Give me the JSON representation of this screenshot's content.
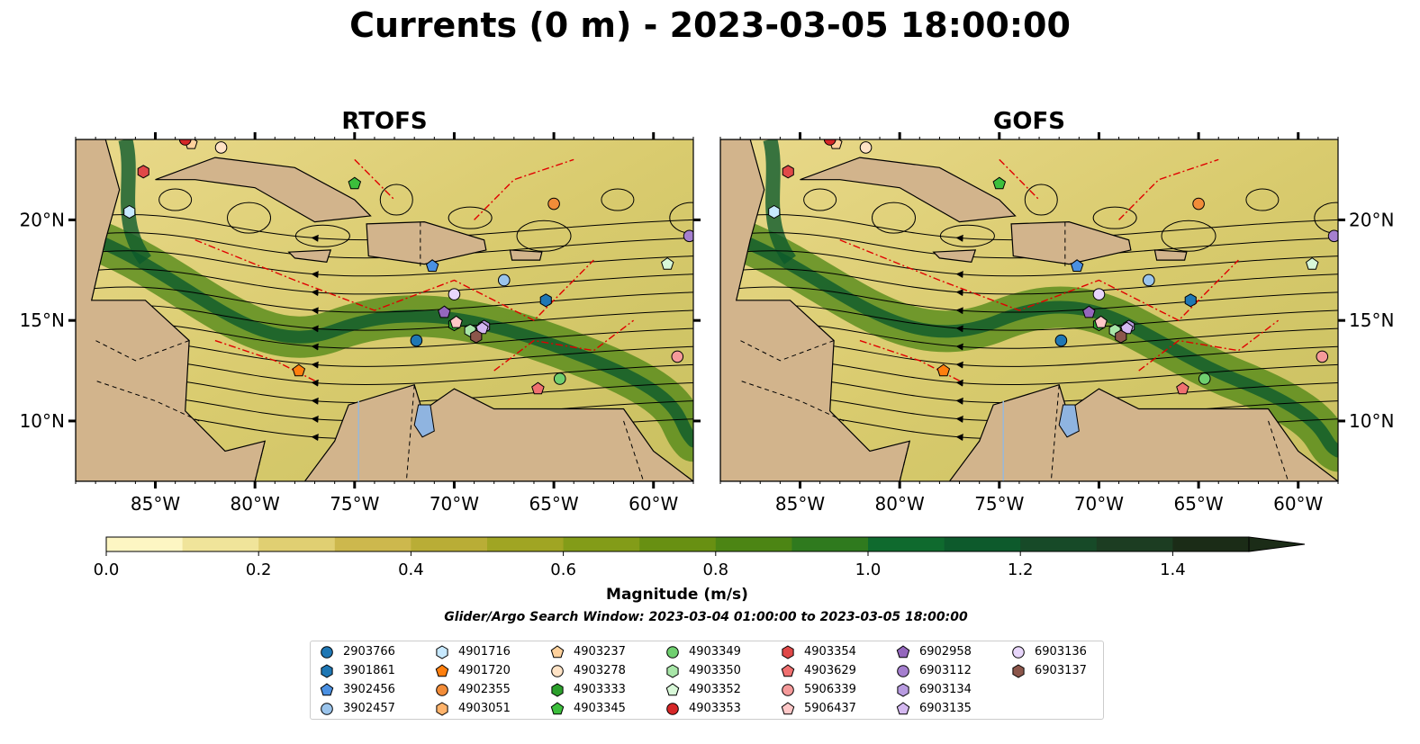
{
  "title": "Currents (0 m) - 2023-03-05 18:00:00",
  "panels": [
    {
      "title": "RTOFS"
    },
    {
      "title": "GOFS"
    }
  ],
  "axes": {
    "lon_ticks": [
      "85°W",
      "80°W",
      "75°W",
      "70°W",
      "65°W",
      "60°W"
    ],
    "lat_ticks": [
      "20°N",
      "15°N",
      "10°N"
    ],
    "lon_range": [
      -89,
      -58
    ],
    "lat_range": [
      7,
      24
    ]
  },
  "colorbar": {
    "label": "Magnitude (m/s)",
    "ticks": [
      "0.0",
      "0.2",
      "0.4",
      "0.6",
      "0.8",
      "1.0",
      "1.2",
      "1.4"
    ],
    "range": [
      0,
      1.5
    ],
    "colors": [
      "#fdf6c3",
      "#f0e49a",
      "#e0cf72",
      "#cdb84d",
      "#b9ad36",
      "#a0a523",
      "#839c18",
      "#689012",
      "#4c8514",
      "#2f7a1e",
      "#0f6a2e",
      "#0d5a2c",
      "#174a28",
      "#1c3d22",
      "#1b2c17"
    ]
  },
  "search_window": "Glider/Argo Search Window: 2023-03-04 01:00:00 to 2023-03-05 18:00:00",
  "land_color": "#d2b48c",
  "legend": [
    {
      "id": "2903766",
      "shape": "circle",
      "color": "#1f77b4"
    },
    {
      "id": "3901861",
      "shape": "hexagon",
      "color": "#1f77b4"
    },
    {
      "id": "3902456",
      "shape": "pentagon",
      "color": "#4a90e2"
    },
    {
      "id": "3902457",
      "shape": "circle",
      "color": "#9ac4ec"
    },
    {
      "id": "4901716",
      "shape": "hexagon",
      "color": "#c7e9ff"
    },
    {
      "id": "4901720",
      "shape": "pentagon",
      "color": "#ff7f0e"
    },
    {
      "id": "4902355",
      "shape": "circle",
      "color": "#f28c38"
    },
    {
      "id": "4903051",
      "shape": "hexagon",
      "color": "#ffb36b"
    },
    {
      "id": "4903237",
      "shape": "pentagon",
      "color": "#ffd19c"
    },
    {
      "id": "4903278",
      "shape": "circle",
      "color": "#ffe3c6"
    },
    {
      "id": "4903333",
      "shape": "hexagon",
      "color": "#2ca02c"
    },
    {
      "id": "4903345",
      "shape": "pentagon",
      "color": "#3cbf3c"
    },
    {
      "id": "4903349",
      "shape": "circle",
      "color": "#6fcf6f"
    },
    {
      "id": "4903350",
      "shape": "hexagon",
      "color": "#a8e6a8"
    },
    {
      "id": "4903352",
      "shape": "pentagon",
      "color": "#d8f8d8"
    },
    {
      "id": "4903353",
      "shape": "circle",
      "color": "#d62728"
    },
    {
      "id": "4903354",
      "shape": "hexagon",
      "color": "#e04848"
    },
    {
      "id": "4903629",
      "shape": "pentagon",
      "color": "#f07070"
    },
    {
      "id": "5906339",
      "shape": "circle",
      "color": "#f59a9a"
    },
    {
      "id": "5906437",
      "shape": "pentagon",
      "color": "#ffc8c8"
    },
    {
      "id": "6902958",
      "shape": "pentagon",
      "color": "#9467bd"
    },
    {
      "id": "6903112",
      "shape": "circle",
      "color": "#a57fcf"
    },
    {
      "id": "6903134",
      "shape": "hexagon",
      "color": "#b89be0"
    },
    {
      "id": "6903135",
      "shape": "pentagon",
      "color": "#d4b8f0"
    },
    {
      "id": "6903136",
      "shape": "circle",
      "color": "#e8d6fb"
    },
    {
      "id": "6903137",
      "shape": "hexagon",
      "color": "#8c564b"
    }
  ],
  "floats": [
    {
      "id": "2903766",
      "lon": -71.9,
      "lat": 14.0
    },
    {
      "id": "3901861",
      "lon": -65.4,
      "lat": 16.0
    },
    {
      "id": "3902456",
      "lon": -71.1,
      "lat": 17.7
    },
    {
      "id": "3902457",
      "lon": -67.5,
      "lat": 17.0
    },
    {
      "id": "4901716",
      "lon": -86.3,
      "lat": 20.4
    },
    {
      "id": "4901720",
      "lon": -77.8,
      "lat": 12.5
    },
    {
      "id": "4902355",
      "lon": -65.0,
      "lat": 20.8
    },
    {
      "id": "4903237",
      "lon": -83.2,
      "lat": 23.8
    },
    {
      "id": "4903278",
      "lon": -81.7,
      "lat": 23.6
    },
    {
      "id": "4903333",
      "lon": -70.0,
      "lat": 14.8
    },
    {
      "id": "4903345",
      "lon": -75.0,
      "lat": 21.8
    },
    {
      "id": "4903349",
      "lon": -64.7,
      "lat": 12.1
    },
    {
      "id": "4903350",
      "lon": -69.2,
      "lat": 14.5
    },
    {
      "id": "4903352",
      "lon": -59.3,
      "lat": 17.8
    },
    {
      "id": "4903353",
      "lon": -83.5,
      "lat": 24.0
    },
    {
      "id": "4903354",
      "lon": -85.6,
      "lat": 22.4
    },
    {
      "id": "4903629",
      "lon": -65.8,
      "lat": 11.6
    },
    {
      "id": "5906339",
      "lon": -58.8,
      "lat": 13.2
    },
    {
      "id": "5906437",
      "lon": -69.9,
      "lat": 14.9
    },
    {
      "id": "6902958",
      "lon": -70.5,
      "lat": 15.4
    },
    {
      "id": "6903112",
      "lon": -58.2,
      "lat": 19.2
    },
    {
      "id": "6903134",
      "lon": -68.5,
      "lat": 14.7
    },
    {
      "id": "6903135",
      "lon": -68.6,
      "lat": 14.6
    },
    {
      "id": "6903136",
      "lon": -70.0,
      "lat": 16.3
    },
    {
      "id": "6903137",
      "lon": -68.9,
      "lat": 14.2
    }
  ]
}
